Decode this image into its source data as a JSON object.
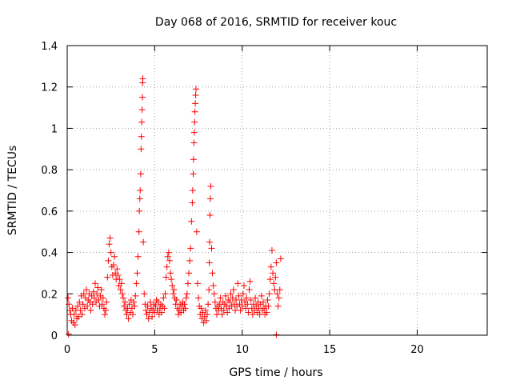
{
  "chart_data": {
    "type": "scatter",
    "title": "Day 068 of 2016, SRMTID for receiver kouc",
    "xlabel": "GPS time / hours",
    "ylabel": "SRMTID / TECUs",
    "xlim": [
      0,
      24
    ],
    "ylim": [
      0,
      1.4
    ],
    "xticks": [
      0,
      5,
      10,
      15,
      20
    ],
    "xtick_labels": [
      "0",
      "5",
      "10",
      "15",
      "20"
    ],
    "yticks": [
      0,
      0.2,
      0.4,
      0.6,
      0.8,
      1.0,
      1.2,
      1.4
    ],
    "ytick_labels": [
      "0",
      "0.2",
      "0.4",
      "0.6",
      "0.8",
      "1",
      "1.2",
      "1.4"
    ],
    "grid": true,
    "marker": "+",
    "color": "#ff0000",
    "series": [
      {
        "name": "SRMTID",
        "points": [
          [
            0.05,
            0.18
          ],
          [
            0.1,
            0.15
          ],
          [
            0.15,
            0.12
          ],
          [
            0.2,
            0.1
          ],
          [
            0.25,
            0.07
          ],
          [
            0.3,
            0.13
          ],
          [
            0.35,
            0.06
          ],
          [
            0.4,
            0.1
          ],
          [
            0.45,
            0.05
          ],
          [
            0.5,
            0.12
          ],
          [
            0.55,
            0.08
          ],
          [
            0.6,
            0.14
          ],
          [
            0.65,
            0.09
          ],
          [
            0.7,
            0.16
          ],
          [
            0.75,
            0.12
          ],
          [
            0.8,
            0.19
          ],
          [
            0.85,
            0.1
          ],
          [
            0.9,
            0.15
          ],
          [
            0.95,
            0.2
          ],
          [
            1.0,
            0.13
          ],
          [
            1.05,
            0.18
          ],
          [
            1.1,
            0.22
          ],
          [
            1.15,
            0.14
          ],
          [
            1.2,
            0.17
          ],
          [
            1.25,
            0.2
          ],
          [
            1.3,
            0.16
          ],
          [
            1.35,
            0.12
          ],
          [
            1.4,
            0.19
          ],
          [
            1.45,
            0.15
          ],
          [
            1.5,
            0.21
          ],
          [
            1.55,
            0.18
          ],
          [
            1.6,
            0.25
          ],
          [
            1.65,
            0.16
          ],
          [
            1.7,
            0.2
          ],
          [
            1.75,
            0.23
          ],
          [
            1.8,
            0.17
          ],
          [
            1.85,
            0.14
          ],
          [
            1.9,
            0.19
          ],
          [
            1.95,
            0.22
          ],
          [
            2.0,
            0.15
          ],
          [
            2.05,
            0.18
          ],
          [
            2.1,
            0.13
          ],
          [
            2.15,
            0.1
          ],
          [
            2.2,
            0.12
          ],
          [
            2.25,
            0.16
          ],
          [
            2.3,
            0.28
          ],
          [
            2.35,
            0.36
          ],
          [
            2.4,
            0.44
          ],
          [
            2.45,
            0.47
          ],
          [
            2.5,
            0.4
          ],
          [
            2.55,
            0.33
          ],
          [
            2.6,
            0.29
          ],
          [
            2.65,
            0.34
          ],
          [
            2.7,
            0.38
          ],
          [
            2.75,
            0.3
          ],
          [
            2.8,
            0.27
          ],
          [
            2.85,
            0.32
          ],
          [
            2.9,
            0.29
          ],
          [
            2.95,
            0.24
          ],
          [
            3.0,
            0.27
          ],
          [
            3.05,
            0.22
          ],
          [
            3.1,
            0.25
          ],
          [
            3.15,
            0.2
          ],
          [
            3.2,
            0.18
          ],
          [
            3.25,
            0.14
          ],
          [
            3.3,
            0.16
          ],
          [
            3.35,
            0.12
          ],
          [
            3.4,
            0.1
          ],
          [
            3.45,
            0.13
          ],
          [
            3.5,
            0.08
          ],
          [
            3.55,
            0.15
          ],
          [
            3.6,
            0.11
          ],
          [
            3.65,
            0.17
          ],
          [
            3.7,
            0.13
          ],
          [
            3.75,
            0.1
          ],
          [
            3.8,
            0.16
          ],
          [
            3.85,
            0.14
          ],
          [
            3.9,
            0.19
          ],
          [
            3.95,
            0.25
          ],
          [
            4.0,
            0.3
          ],
          [
            4.05,
            0.38
          ],
          [
            4.1,
            0.5
          ],
          [
            4.12,
            0.6
          ],
          [
            4.15,
            0.66
          ],
          [
            4.17,
            0.7
          ],
          [
            4.2,
            0.78
          ],
          [
            4.22,
            0.9
          ],
          [
            4.24,
            0.96
          ],
          [
            4.26,
            1.03
          ],
          [
            4.28,
            1.09
          ],
          [
            4.3,
            1.15
          ],
          [
            4.31,
            1.22
          ],
          [
            4.32,
            1.24
          ],
          [
            4.35,
            0.45
          ],
          [
            4.4,
            0.2
          ],
          [
            4.45,
            0.15
          ],
          [
            4.5,
            0.12
          ],
          [
            4.55,
            0.1
          ],
          [
            4.6,
            0.14
          ],
          [
            4.65,
            0.08
          ],
          [
            4.7,
            0.11
          ],
          [
            4.75,
            0.16
          ],
          [
            4.8,
            0.13
          ],
          [
            4.85,
            0.09
          ],
          [
            4.9,
            0.12
          ],
          [
            4.95,
            0.15
          ],
          [
            5.0,
            0.11
          ],
          [
            5.05,
            0.14
          ],
          [
            5.1,
            0.17
          ],
          [
            5.15,
            0.12
          ],
          [
            5.2,
            0.16
          ],
          [
            5.25,
            0.1
          ],
          [
            5.3,
            0.13
          ],
          [
            5.35,
            0.15
          ],
          [
            5.4,
            0.11
          ],
          [
            5.45,
            0.14
          ],
          [
            5.5,
            0.18
          ],
          [
            5.55,
            0.13
          ],
          [
            5.6,
            0.2
          ],
          [
            5.65,
            0.28
          ],
          [
            5.7,
            0.33
          ],
          [
            5.75,
            0.38
          ],
          [
            5.8,
            0.4
          ],
          [
            5.85,
            0.36
          ],
          [
            5.9,
            0.3
          ],
          [
            5.95,
            0.27
          ],
          [
            6.0,
            0.24
          ],
          [
            6.05,
            0.2
          ],
          [
            6.1,
            0.22
          ],
          [
            6.15,
            0.18
          ],
          [
            6.2,
            0.15
          ],
          [
            6.25,
            0.17
          ],
          [
            6.3,
            0.13
          ],
          [
            6.35,
            0.1
          ],
          [
            6.4,
            0.12
          ],
          [
            6.45,
            0.15
          ],
          [
            6.5,
            0.11
          ],
          [
            6.55,
            0.14
          ],
          [
            6.6,
            0.16
          ],
          [
            6.65,
            0.12
          ],
          [
            6.7,
            0.15
          ],
          [
            6.75,
            0.13
          ],
          [
            6.8,
            0.18
          ],
          [
            6.85,
            0.2
          ],
          [
            6.9,
            0.25
          ],
          [
            6.95,
            0.3
          ],
          [
            7.0,
            0.36
          ],
          [
            7.05,
            0.42
          ],
          [
            7.1,
            0.55
          ],
          [
            7.15,
            0.64
          ],
          [
            7.17,
            0.7
          ],
          [
            7.2,
            0.78
          ],
          [
            7.22,
            0.85
          ],
          [
            7.24,
            0.93
          ],
          [
            7.26,
            0.98
          ],
          [
            7.28,
            1.03
          ],
          [
            7.3,
            1.08
          ],
          [
            7.32,
            1.12
          ],
          [
            7.34,
            1.16
          ],
          [
            7.36,
            1.19
          ],
          [
            7.4,
            0.5
          ],
          [
            7.45,
            0.25
          ],
          [
            7.5,
            0.18
          ],
          [
            7.55,
            0.14
          ],
          [
            7.6,
            0.1
          ],
          [
            7.65,
            0.13
          ],
          [
            7.7,
            0.08
          ],
          [
            7.75,
            0.11
          ],
          [
            7.8,
            0.06
          ],
          [
            7.85,
            0.09
          ],
          [
            7.9,
            0.12
          ],
          [
            7.95,
            0.07
          ],
          [
            8.0,
            0.1
          ],
          [
            8.05,
            0.15
          ],
          [
            8.1,
            0.22
          ],
          [
            8.12,
            0.35
          ],
          [
            8.14,
            0.45
          ],
          [
            8.16,
            0.58
          ],
          [
            8.18,
            0.66
          ],
          [
            8.2,
            0.72
          ],
          [
            8.25,
            0.42
          ],
          [
            8.3,
            0.3
          ],
          [
            8.35,
            0.24
          ],
          [
            8.4,
            0.2
          ],
          [
            8.45,
            0.16
          ],
          [
            8.5,
            0.13
          ],
          [
            8.55,
            0.1
          ],
          [
            8.6,
            0.14
          ],
          [
            8.65,
            0.12
          ],
          [
            8.7,
            0.15
          ],
          [
            8.75,
            0.18
          ],
          [
            8.8,
            0.13
          ],
          [
            8.85,
            0.1
          ],
          [
            8.9,
            0.16
          ],
          [
            8.95,
            0.12
          ],
          [
            9.0,
            0.15
          ],
          [
            9.05,
            0.19
          ],
          [
            9.1,
            0.14
          ],
          [
            9.15,
            0.11
          ],
          [
            9.2,
            0.17
          ],
          [
            9.25,
            0.13
          ],
          [
            9.3,
            0.16
          ],
          [
            9.35,
            0.2
          ],
          [
            9.4,
            0.14
          ],
          [
            9.45,
            0.18
          ],
          [
            9.5,
            0.22
          ],
          [
            9.55,
            0.15
          ],
          [
            9.6,
            0.12
          ],
          [
            9.65,
            0.17
          ],
          [
            9.7,
            0.14
          ],
          [
            9.75,
            0.25
          ],
          [
            9.8,
            0.19
          ],
          [
            9.85,
            0.15
          ],
          [
            9.9,
            0.12
          ],
          [
            9.95,
            0.17
          ],
          [
            10.0,
            0.14
          ],
          [
            10.05,
            0.2
          ],
          [
            10.1,
            0.24
          ],
          [
            10.15,
            0.16
          ],
          [
            10.2,
            0.13
          ],
          [
            10.25,
            0.18
          ],
          [
            10.3,
            0.15
          ],
          [
            10.35,
            0.11
          ],
          [
            10.4,
            0.22
          ],
          [
            10.45,
            0.26
          ],
          [
            10.5,
            0.17
          ],
          [
            10.55,
            0.13
          ],
          [
            10.6,
            0.1
          ],
          [
            10.65,
            0.15
          ],
          [
            10.7,
            0.12
          ],
          [
            10.75,
            0.18
          ],
          [
            10.8,
            0.14
          ],
          [
            10.85,
            0.11
          ],
          [
            10.9,
            0.16
          ],
          [
            10.95,
            0.13
          ],
          [
            11.0,
            0.1
          ],
          [
            11.05,
            0.15
          ],
          [
            11.1,
            0.19
          ],
          [
            11.15,
            0.12
          ],
          [
            11.2,
            0.16
          ],
          [
            11.25,
            0.13
          ],
          [
            11.3,
            0.1
          ],
          [
            11.35,
            0.14
          ],
          [
            11.4,
            0.11
          ],
          [
            11.45,
            0.17
          ],
          [
            11.5,
            0.14
          ],
          [
            11.55,
            0.2
          ],
          [
            11.6,
            0.27
          ],
          [
            11.65,
            0.33
          ],
          [
            11.7,
            0.41
          ],
          [
            11.75,
            0.3
          ],
          [
            11.8,
            0.25
          ],
          [
            11.85,
            0.22
          ],
          [
            11.9,
            0.28
          ],
          [
            11.95,
            0.35
          ],
          [
            12.0,
            0.2
          ],
          [
            12.05,
            0.14
          ],
          [
            12.1,
            0.18
          ],
          [
            12.15,
            0.22
          ],
          [
            12.2,
            0.37
          ],
          [
            0.08,
            0.005
          ],
          [
            11.95,
            0.002
          ]
        ]
      }
    ]
  }
}
